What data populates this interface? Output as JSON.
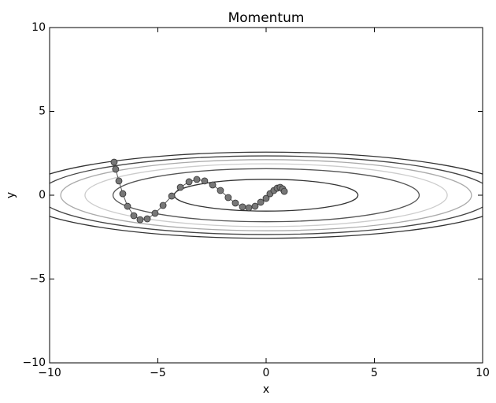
{
  "chart_data": {
    "type": "line",
    "title": "Momentum",
    "xlabel": "x",
    "ylabel": "y",
    "xlim": [
      -10,
      10
    ],
    "ylim": [
      -10,
      10
    ],
    "xticks": [
      {
        "value": -10,
        "label": "−10"
      },
      {
        "value": -5,
        "label": "−5"
      },
      0,
      5,
      10
    ],
    "yticks": [
      {
        "value": -10,
        "label": "−10"
      },
      {
        "value": -5,
        "label": "−5"
      },
      0,
      5,
      10
    ],
    "contour": {
      "levels": [
        0.9,
        2.5,
        3.5,
        4.5,
        5.5,
        6.6
      ],
      "colors": [
        "#333333",
        "#555555",
        "#cccccc",
        "#aaaaaa",
        "#444444",
        "#333333"
      ]
    },
    "series": [
      {
        "color": "#555555",
        "x": [
          -7.02,
          -6.95,
          -6.8,
          -6.62,
          -6.4,
          -6.11,
          -5.82,
          -5.49,
          -5.13,
          -4.76,
          -4.36,
          -3.96,
          -3.56,
          -3.2,
          -2.84,
          -2.47,
          -2.11,
          -1.75,
          -1.42,
          -1.09,
          -0.8,
          -0.51,
          -0.25,
          0,
          0.18,
          0.36,
          0.51,
          0.65,
          0.76,
          0.84
        ],
        "values": [
          1.97,
          1.55,
          0.85,
          0.09,
          -0.66,
          -1.22,
          -1.46,
          -1.41,
          -1.08,
          -0.61,
          -0.05,
          0.47,
          0.8,
          0.94,
          0.85,
          0.61,
          0.28,
          -0.14,
          -0.47,
          -0.7,
          -0.75,
          -0.66,
          -0.42,
          -0.19,
          0.09,
          0.28,
          0.42,
          0.47,
          0.38,
          0.23
        ]
      }
    ]
  }
}
